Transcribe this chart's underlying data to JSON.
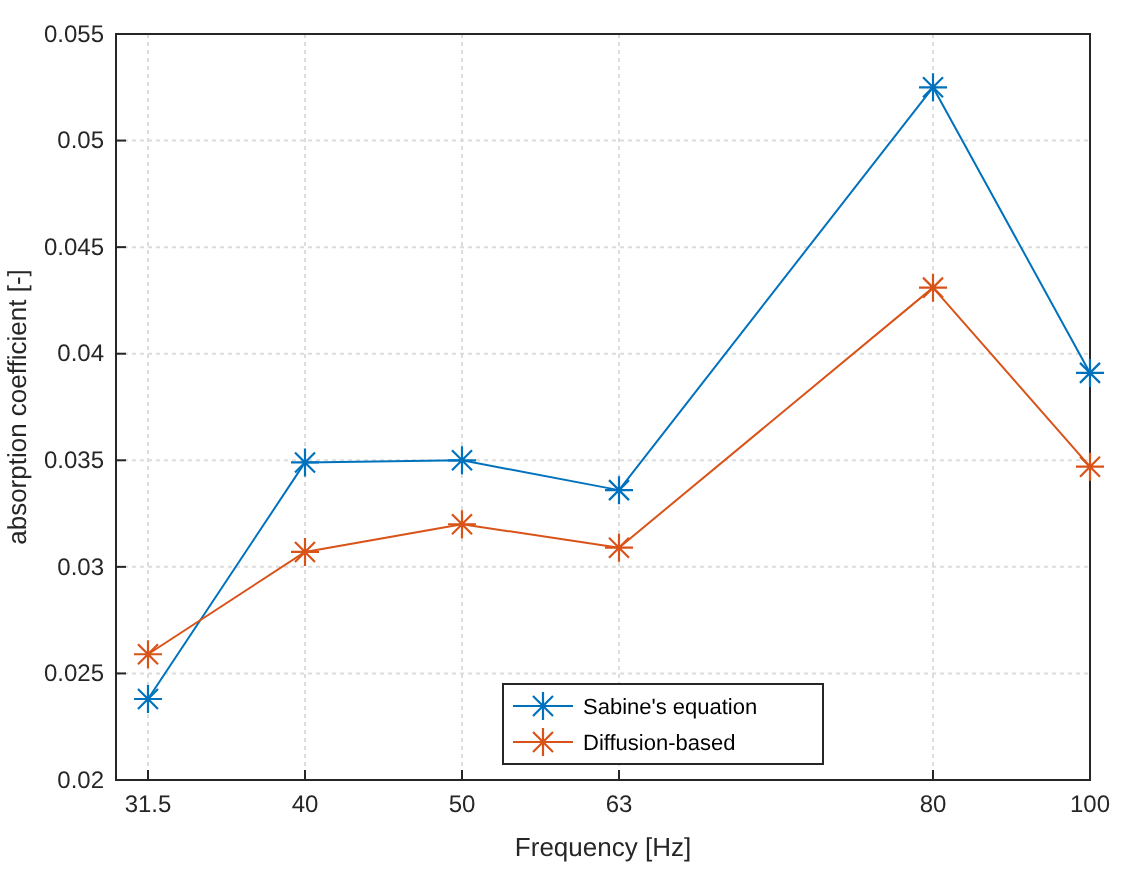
{
  "chart_data": {
    "type": "line",
    "xlabel": "Frequency [Hz]",
    "ylabel": "absorption coefficient [-]",
    "categories": [
      "31.5",
      "40",
      "50",
      "63",
      null,
      "80",
      "100"
    ],
    "series": [
      {
        "name": "Sabine's equation",
        "color": "#0072bd",
        "values": [
          0.0238,
          0.0349,
          0.035,
          0.0336,
          null,
          0.0525,
          0.0391
        ]
      },
      {
        "name": "Diffusion-based",
        "color": "#d95319",
        "values": [
          0.0259,
          0.0307,
          0.032,
          0.0309,
          null,
          0.0431,
          0.0347
        ]
      }
    ],
    "ylim": [
      0.02,
      0.055
    ],
    "yticks": [
      0.02,
      0.025,
      0.03,
      0.035,
      0.04,
      0.045,
      0.05,
      0.055
    ],
    "grid": true,
    "legend": "bottom",
    "marker": "cross",
    "line_style": "solid"
  }
}
